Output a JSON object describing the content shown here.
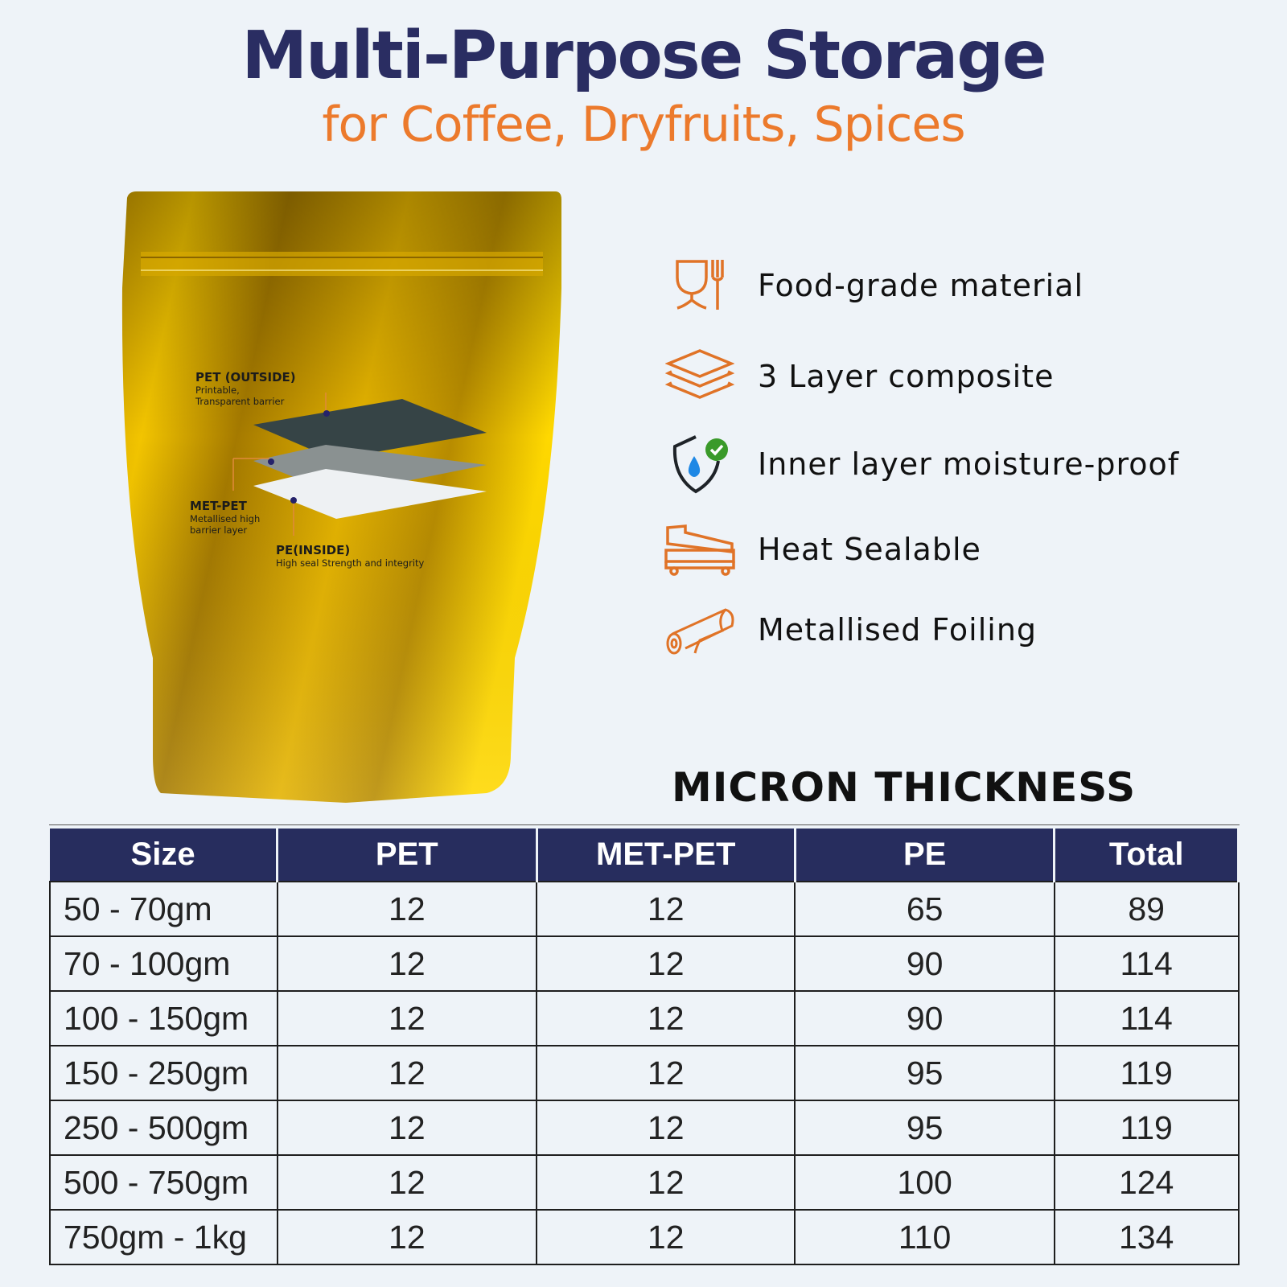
{
  "header": {
    "title": "Multi-Purpose Storage",
    "subtitle": "for Coffee, Dryfruits, Spices"
  },
  "colors": {
    "navy": "#272d5e",
    "orange": "#ec7a2c",
    "background": "#eef3f8",
    "gold": "#e0b000"
  },
  "pouch": {
    "layers": [
      {
        "name": "PET (OUTSIDE)",
        "desc1": "Printable,",
        "desc2": "Transparent barrier"
      },
      {
        "name": "MET-PET",
        "desc1": "Metallised high",
        "desc2": "barrier layer"
      },
      {
        "name": "PE(INSIDE)",
        "desc1": "High seal Strength and integrity",
        "desc2": ""
      }
    ]
  },
  "features": [
    {
      "icon": "food-grade-glass-fork-icon",
      "label": "Food-grade material"
    },
    {
      "icon": "layers-icon",
      "label": "3 Layer composite"
    },
    {
      "icon": "shield-water-check-icon",
      "label": "Inner layer moisture-proof"
    },
    {
      "icon": "heat-sealer-icon",
      "label": "Heat Sealable"
    },
    {
      "icon": "foil-roll-icon",
      "label": "Metallised Foiling"
    }
  ],
  "table": {
    "title": "MICRON THICKNESS",
    "headers": [
      "Size",
      "PET",
      "MET-PET",
      "PE",
      "Total"
    ],
    "rows": [
      [
        "50 - 70gm",
        "12",
        "12",
        "65",
        "89"
      ],
      [
        "70 - 100gm",
        "12",
        "12",
        "90",
        "114"
      ],
      [
        "100 - 150gm",
        "12",
        "12",
        "90",
        "114"
      ],
      [
        "150 - 250gm",
        "12",
        "12",
        "95",
        "119"
      ],
      [
        "250 - 500gm",
        "12",
        "12",
        "95",
        "119"
      ],
      [
        "500 - 750gm",
        "12",
        "12",
        "100",
        "124"
      ],
      [
        "750gm - 1kg",
        "12",
        "12",
        "110",
        "134"
      ]
    ]
  }
}
